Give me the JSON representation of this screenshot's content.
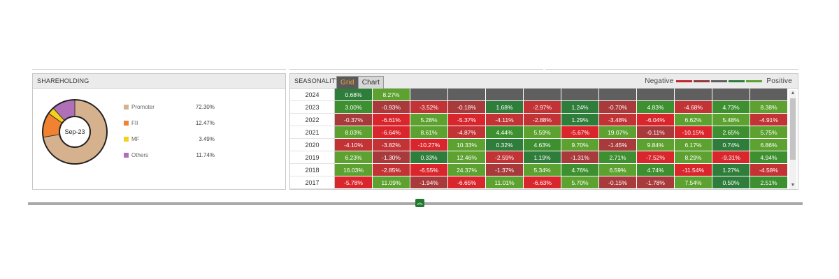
{
  "shareholding": {
    "title": "SHAREHOLDING",
    "center_label": "Sep-23",
    "items": [
      {
        "name": "Promoter",
        "value": "72.30%",
        "percent": 72.3,
        "color": "#d6b18e"
      },
      {
        "name": "FII",
        "value": "12.47%",
        "percent": 12.47,
        "color": "#f08232"
      },
      {
        "name": "MF",
        "value": "3.49%",
        "percent": 3.49,
        "color": "#f4d21c"
      },
      {
        "name": "Others",
        "value": "11.74%",
        "percent": 11.74,
        "color": "#b070b8"
      }
    ]
  },
  "seasonality": {
    "title": "SEASONALITY",
    "tabs": [
      "Grid",
      "Chart"
    ],
    "active_tab": "Grid",
    "legend_negative": "Negative",
    "legend_positive": "Positive",
    "rows": [
      {
        "year": "2024",
        "values": [
          "0.68%",
          "8.27%",
          "",
          "",
          "",
          "",
          "",
          "",
          "",
          "",
          "",
          ""
        ]
      },
      {
        "year": "2023",
        "values": [
          "3.00%",
          "-0.93%",
          "-3.52%",
          "-0.18%",
          "1.68%",
          "-2.97%",
          "1.24%",
          "-0.70%",
          "4.83%",
          "-4.68%",
          "4.73%",
          "8.38%"
        ]
      },
      {
        "year": "2022",
        "values": [
          "-0.37%",
          "-6.61%",
          "5.28%",
          "-5.37%",
          "-4.11%",
          "-2.88%",
          "1.29%",
          "-3.48%",
          "-6.04%",
          "6.62%",
          "5.48%",
          "-4.91%"
        ]
      },
      {
        "year": "2021",
        "values": [
          "8.03%",
          "-6.64%",
          "8.61%",
          "-4.87%",
          "4.44%",
          "5.59%",
          "-5.67%",
          "19.07%",
          "-0.11%",
          "-10.15%",
          "2.65%",
          "5.75%"
        ]
      },
      {
        "year": "2020",
        "values": [
          "-4.10%",
          "-3.82%",
          "-10.27%",
          "10.33%",
          "0.32%",
          "4.63%",
          "9.70%",
          "-1.45%",
          "9.84%",
          "6.17%",
          "0.74%",
          "6.86%"
        ]
      },
      {
        "year": "2019",
        "values": [
          "6.23%",
          "-1.30%",
          "0.33%",
          "12.46%",
          "-2.59%",
          "1.19%",
          "-1.31%",
          "2.71%",
          "-7.52%",
          "8.29%",
          "-9.31%",
          "4.94%"
        ]
      },
      {
        "year": "2018",
        "values": [
          "16.03%",
          "-2.85%",
          "-6.55%",
          "24.37%",
          "-1.37%",
          "5.34%",
          "4.76%",
          "6.59%",
          "4.74%",
          "-11.54%",
          "1.27%",
          "-4.58%"
        ]
      },
      {
        "year": "2017",
        "values": [
          "-5.78%",
          "11.09%",
          "-1.94%",
          "-6.65%",
          "11.01%",
          "-6.63%",
          "5.70%",
          "-0.15%",
          "-1.78%",
          "7.54%",
          "0.50%",
          "2.51%"
        ]
      }
    ],
    "colors": {
      "empty": "#5f5f5f",
      "neg_light": "#a83a3c",
      "neg_mid": "#c23336",
      "neg_strong": "#d9262c",
      "pos_light": "#2f7d3a",
      "pos_mid": "#3d8f2f",
      "pos_strong": "#5da230"
    },
    "scroll_up_icon": "triangle-up",
    "scroll_down_icon": "triangle-down"
  },
  "footer": {
    "collapse_icon": "double-chevron-up"
  }
}
